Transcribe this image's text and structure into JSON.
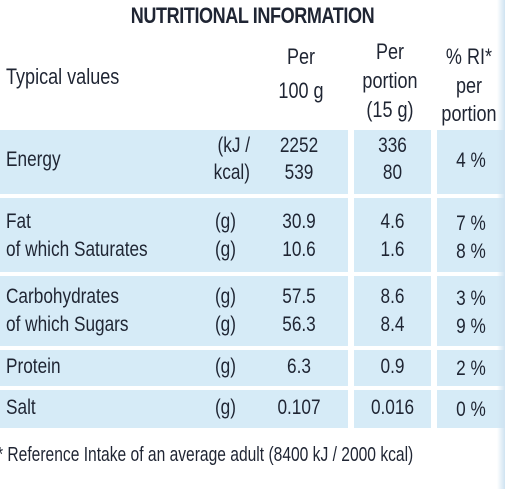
{
  "title": "NUTRITIONAL INFORMATION",
  "header": {
    "typical_values": "Typical values",
    "per_100g_line1": "Per",
    "per_100g_line2": "100 g",
    "per_portion_line1": "Per",
    "per_portion_line2": "portion",
    "per_portion_line3": "(15 g)",
    "ri_line1": "% RI*",
    "ri_line2": "per",
    "ri_line3": "portion"
  },
  "rows": [
    {
      "name": "Energy",
      "unit_line1": "(kJ /",
      "unit_line2": "kcal)",
      "per100_line1": "2252",
      "per100_line2": "539",
      "portion_line1": "336",
      "portion_line2": "80",
      "ri": "4 %"
    },
    {
      "name": "Fat",
      "unit": "(g)",
      "per100": "30.9",
      "portion": "4.6",
      "ri": "7 %"
    },
    {
      "name": "of which Saturates",
      "unit": "(g)",
      "per100": "10.6",
      "portion": "1.6",
      "ri": "8 %"
    },
    {
      "name": "Carbohydrates",
      "unit": "(g)",
      "per100": "57.5",
      "portion": "8.6",
      "ri": "3 %"
    },
    {
      "name": "of which Sugars",
      "unit": "(g)",
      "per100": "56.3",
      "portion": "8.4",
      "ri": "9 %"
    },
    {
      "name": "Protein",
      "unit": "(g)",
      "per100": "6.3",
      "portion": "0.9",
      "ri": "2 %"
    },
    {
      "name": "Salt",
      "unit": "(g)",
      "per100": "0.107",
      "portion": "0.016",
      "ri": "0 %"
    }
  ],
  "footnote": "* Reference Intake of an average adult (8400 kJ / 2000 kcal)",
  "colors": {
    "panel": "#d6ebf7",
    "text": "#1f2533"
  }
}
